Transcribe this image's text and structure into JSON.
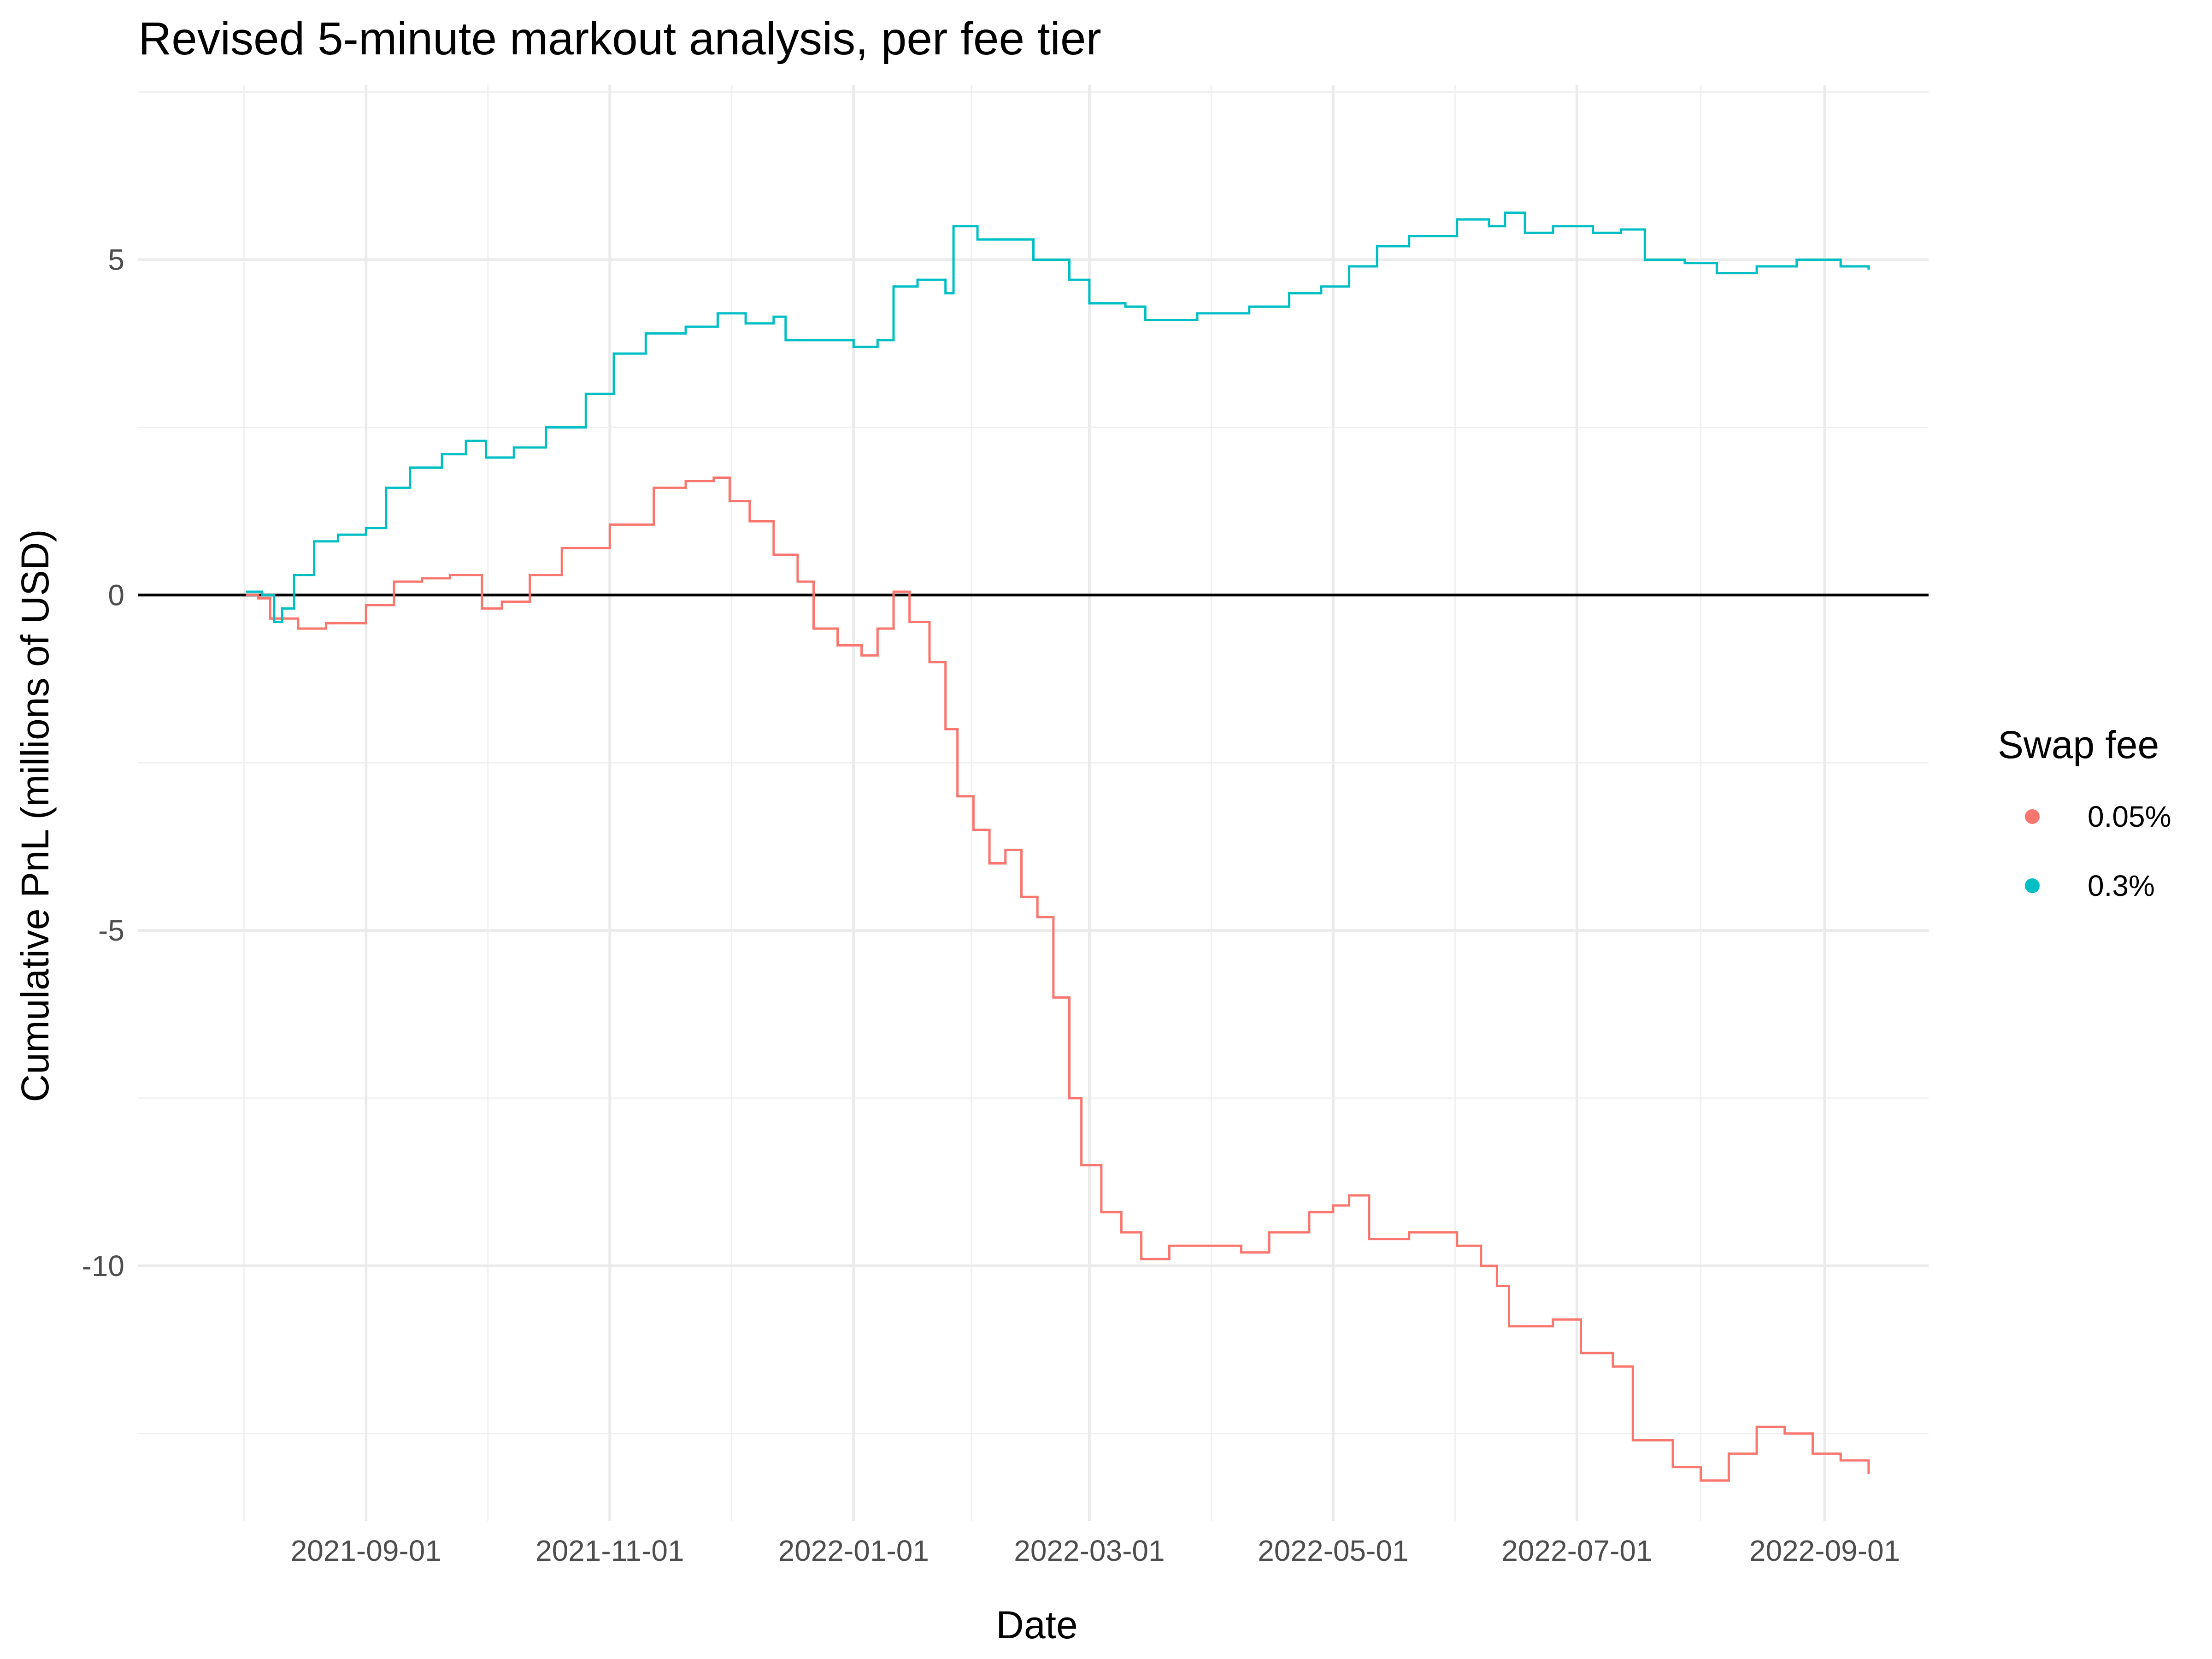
{
  "chart_data": {
    "type": "line",
    "title": "Revised 5-minute markout analysis, per fee tier",
    "xlabel": "Date",
    "ylabel": "Cumulative PnL (millions of USD)",
    "x_axis": {
      "type": "date",
      "range": [
        "2021-07-06",
        "2022-09-27"
      ],
      "ticks": [
        "2021-09-01",
        "2021-11-01",
        "2022-01-01",
        "2022-03-01",
        "2022-05-01",
        "2022-07-01",
        "2022-09-01"
      ]
    },
    "y_axis": {
      "range": [
        -13.8,
        7.6
      ],
      "ticks": [
        5,
        0,
        -5,
        -10
      ],
      "tick_labels": [
        "5",
        "0",
        "-5",
        "-10"
      ]
    },
    "grid": true,
    "reference_line": {
      "y": 0,
      "color": "#000000"
    },
    "legend": {
      "title": "Swap fee",
      "position": "right",
      "entries": [
        "0.05%",
        "0.3%"
      ]
    },
    "series": [
      {
        "name": "0.05%",
        "color": "#F8766D",
        "points": [
          [
            "2021-08-02",
            0.0
          ],
          [
            "2021-08-05",
            -0.05
          ],
          [
            "2021-08-08",
            -0.35
          ],
          [
            "2021-08-15",
            -0.5
          ],
          [
            "2021-08-22",
            -0.42
          ],
          [
            "2021-09-01",
            -0.15
          ],
          [
            "2021-09-08",
            0.2
          ],
          [
            "2021-09-15",
            0.25
          ],
          [
            "2021-09-22",
            0.3
          ],
          [
            "2021-09-30",
            -0.2
          ],
          [
            "2021-10-05",
            -0.1
          ],
          [
            "2021-10-12",
            0.3
          ],
          [
            "2021-10-20",
            0.7
          ],
          [
            "2021-11-01",
            1.05
          ],
          [
            "2021-11-12",
            1.6
          ],
          [
            "2021-11-20",
            1.7
          ],
          [
            "2021-11-27",
            1.75
          ],
          [
            "2021-12-01",
            1.4
          ],
          [
            "2021-12-06",
            1.1
          ],
          [
            "2021-12-12",
            0.6
          ],
          [
            "2021-12-18",
            0.2
          ],
          [
            "2021-12-22",
            -0.5
          ],
          [
            "2021-12-28",
            -0.75
          ],
          [
            "2022-01-03",
            -0.9
          ],
          [
            "2022-01-07",
            -0.5
          ],
          [
            "2022-01-11",
            0.05
          ],
          [
            "2022-01-15",
            -0.4
          ],
          [
            "2022-01-20",
            -1.0
          ],
          [
            "2022-01-24",
            -2.0
          ],
          [
            "2022-01-27",
            -3.0
          ],
          [
            "2022-01-31",
            -3.5
          ],
          [
            "2022-02-04",
            -4.0
          ],
          [
            "2022-02-08",
            -3.8
          ],
          [
            "2022-02-12",
            -4.5
          ],
          [
            "2022-02-16",
            -4.8
          ],
          [
            "2022-02-20",
            -6.0
          ],
          [
            "2022-02-24",
            -7.5
          ],
          [
            "2022-02-27",
            -8.5
          ],
          [
            "2022-03-04",
            -9.2
          ],
          [
            "2022-03-09",
            -9.5
          ],
          [
            "2022-03-14",
            -9.9
          ],
          [
            "2022-03-21",
            -9.7
          ],
          [
            "2022-04-01",
            -9.7
          ],
          [
            "2022-04-08",
            -9.8
          ],
          [
            "2022-04-15",
            -9.5
          ],
          [
            "2022-04-25",
            -9.2
          ],
          [
            "2022-05-01",
            -9.1
          ],
          [
            "2022-05-05",
            -8.95
          ],
          [
            "2022-05-10",
            -9.6
          ],
          [
            "2022-05-20",
            -9.5
          ],
          [
            "2022-06-01",
            -9.7
          ],
          [
            "2022-06-07",
            -10.0
          ],
          [
            "2022-06-11",
            -10.3
          ],
          [
            "2022-06-14",
            -10.9
          ],
          [
            "2022-06-25",
            -10.8
          ],
          [
            "2022-07-02",
            -11.3
          ],
          [
            "2022-07-10",
            -11.5
          ],
          [
            "2022-07-15",
            -12.6
          ],
          [
            "2022-07-25",
            -13.0
          ],
          [
            "2022-08-01",
            -13.2
          ],
          [
            "2022-08-08",
            -12.8
          ],
          [
            "2022-08-15",
            -12.4
          ],
          [
            "2022-08-22",
            -12.5
          ],
          [
            "2022-08-29",
            -12.8
          ],
          [
            "2022-09-05",
            -12.9
          ],
          [
            "2022-09-12",
            -13.1
          ]
        ]
      },
      {
        "name": "0.3%",
        "color": "#00BFC4",
        "points": [
          [
            "2021-08-02",
            0.05
          ],
          [
            "2021-08-06",
            0.0
          ],
          [
            "2021-08-09",
            -0.4
          ],
          [
            "2021-08-11",
            -0.2
          ],
          [
            "2021-08-14",
            0.3
          ],
          [
            "2021-08-19",
            0.8
          ],
          [
            "2021-08-25",
            0.9
          ],
          [
            "2021-09-01",
            1.0
          ],
          [
            "2021-09-06",
            1.6
          ],
          [
            "2021-09-12",
            1.9
          ],
          [
            "2021-09-20",
            2.1
          ],
          [
            "2021-09-26",
            2.3
          ],
          [
            "2021-10-01",
            2.05
          ],
          [
            "2021-10-08",
            2.2
          ],
          [
            "2021-10-16",
            2.5
          ],
          [
            "2021-10-26",
            3.0
          ],
          [
            "2021-11-02",
            3.6
          ],
          [
            "2021-11-10",
            3.9
          ],
          [
            "2021-11-20",
            4.0
          ],
          [
            "2021-11-28",
            4.2
          ],
          [
            "2021-12-05",
            4.05
          ],
          [
            "2021-12-12",
            4.15
          ],
          [
            "2021-12-15",
            3.8
          ],
          [
            "2021-12-25",
            3.8
          ],
          [
            "2022-01-01",
            3.7
          ],
          [
            "2022-01-07",
            3.8
          ],
          [
            "2022-01-11",
            4.6
          ],
          [
            "2022-01-17",
            4.7
          ],
          [
            "2022-01-24",
            4.5
          ],
          [
            "2022-01-26",
            5.5
          ],
          [
            "2022-02-01",
            5.3
          ],
          [
            "2022-02-08",
            5.3
          ],
          [
            "2022-02-15",
            5.0
          ],
          [
            "2022-02-24",
            4.7
          ],
          [
            "2022-03-01",
            4.35
          ],
          [
            "2022-03-10",
            4.3
          ],
          [
            "2022-03-15",
            4.1
          ],
          [
            "2022-03-28",
            4.2
          ],
          [
            "2022-04-10",
            4.3
          ],
          [
            "2022-04-20",
            4.5
          ],
          [
            "2022-04-28",
            4.6
          ],
          [
            "2022-05-05",
            4.9
          ],
          [
            "2022-05-12",
            5.2
          ],
          [
            "2022-05-20",
            5.35
          ],
          [
            "2022-06-01",
            5.6
          ],
          [
            "2022-06-09",
            5.5
          ],
          [
            "2022-06-13",
            5.7
          ],
          [
            "2022-06-18",
            5.4
          ],
          [
            "2022-06-25",
            5.5
          ],
          [
            "2022-07-05",
            5.4
          ],
          [
            "2022-07-12",
            5.45
          ],
          [
            "2022-07-18",
            5.0
          ],
          [
            "2022-07-28",
            4.95
          ],
          [
            "2022-08-05",
            4.8
          ],
          [
            "2022-08-15",
            4.9
          ],
          [
            "2022-08-25",
            5.0
          ],
          [
            "2022-09-05",
            4.9
          ],
          [
            "2022-09-12",
            4.85
          ]
        ]
      }
    ]
  }
}
